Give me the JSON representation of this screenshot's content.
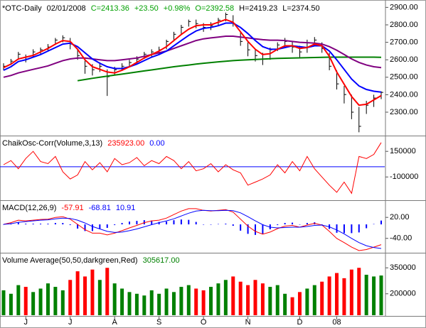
{
  "chart_data": [
    {
      "type": "ohlc",
      "header": [
        {
          "text": "*OTC-Daily",
          "color": "#000000"
        },
        {
          "text": "02/01/2008",
          "color": "#000000"
        },
        {
          "text": "C=2413.36",
          "color": "#00a000"
        },
        {
          "text": "+23.50",
          "color": "#00a000"
        },
        {
          "text": "+0.98%",
          "color": "#00a000"
        },
        {
          "text": "O=2392.58",
          "color": "#00a000"
        },
        {
          "text": "H=2419.23",
          "color": "#000000"
        },
        {
          "text": "L=2374.50",
          "color": "#000000"
        }
      ],
      "ylim": [
        2170,
        2930
      ],
      "yticks": [
        {
          "value": 2300,
          "label": "2300.00"
        },
        {
          "value": 2400,
          "label": "2400.00"
        },
        {
          "value": 2500,
          "label": "2500.00"
        },
        {
          "value": 2600,
          "label": "2600.00"
        },
        {
          "value": 2700,
          "label": "2700.00"
        },
        {
          "value": 2800,
          "label": "2800.00"
        },
        {
          "value": 2900,
          "label": "2900.00"
        }
      ],
      "bars": {
        "color": "#000000",
        "high": [
          2580,
          2605,
          2645,
          2630,
          2660,
          2670,
          2690,
          2725,
          2740,
          2725,
          2660,
          2600,
          2575,
          2585,
          2545,
          2560,
          2580,
          2600,
          2620,
          2645,
          2660,
          2675,
          2715,
          2760,
          2800,
          2830,
          2830,
          2810,
          2815,
          2840,
          2870,
          2855,
          2760,
          2700,
          2660,
          2640,
          2670,
          2700,
          2725,
          2705,
          2680,
          2715,
          2730,
          2700,
          2640,
          2540,
          2450,
          2400,
          2330,
          2365,
          2400,
          2419.23
        ],
        "low": [
          2540,
          2570,
          2600,
          2585,
          2615,
          2630,
          2650,
          2685,
          2700,
          2660,
          2600,
          2520,
          2510,
          2530,
          2393,
          2510,
          2540,
          2560,
          2580,
          2605,
          2615,
          2630,
          2660,
          2705,
          2745,
          2790,
          2780,
          2760,
          2770,
          2795,
          2820,
          2790,
          2680,
          2620,
          2590,
          2570,
          2600,
          2650,
          2670,
          2640,
          2610,
          2640,
          2680,
          2640,
          2540,
          2430,
          2350,
          2260,
          2185,
          2290,
          2330,
          2374.5
        ],
        "close": [
          2563,
          2592,
          2632,
          2604,
          2645,
          2657,
          2673,
          2713,
          2726,
          2697,
          2624,
          2563,
          2543,
          2563,
          2503,
          2543,
          2563,
          2584,
          2604,
          2632,
          2645,
          2657,
          2705,
          2746,
          2786,
          2819,
          2807,
          2786,
          2795,
          2827,
          2859,
          2807,
          2705,
          2657,
          2624,
          2604,
          2657,
          2685,
          2705,
          2673,
          2645,
          2697,
          2713,
          2665,
          2563,
          2462,
          2401,
          2300,
          2219,
          2340,
          2381,
          2413.36
        ]
      },
      "lines": [
        {
          "color": "#008000",
          "values": [
            null,
            null,
            null,
            null,
            null,
            null,
            null,
            null,
            null,
            null,
            2480,
            2487,
            2494,
            2500,
            2506,
            2512,
            2518,
            2524,
            2530,
            2536,
            2542,
            2548,
            2554,
            2560,
            2565,
            2570,
            2575,
            2580,
            2584,
            2588,
            2592,
            2595,
            2598,
            2600,
            2602,
            2604,
            2606,
            2608,
            2609,
            2610,
            2611,
            2612,
            2613,
            2614,
            2615,
            2615,
            2615,
            2615,
            2615,
            2615,
            2615,
            2614
          ]
        },
        {
          "color": "#800080",
          "values": [
            2500,
            2510,
            2525,
            2535,
            2545,
            2555,
            2565,
            2580,
            2595,
            2605,
            2610,
            2610,
            2605,
            2600,
            2595,
            2595,
            2600,
            2605,
            2610,
            2620,
            2630,
            2640,
            2650,
            2665,
            2680,
            2695,
            2710,
            2720,
            2725,
            2730,
            2735,
            2735,
            2730,
            2725,
            2720,
            2715,
            2712,
            2712,
            2710,
            2705,
            2700,
            2698,
            2695,
            2690,
            2675,
            2655,
            2630,
            2605,
            2585,
            2570,
            2560,
            2555
          ]
        },
        {
          "color": "#0000ff",
          "values": [
            2540,
            2560,
            2590,
            2600,
            2615,
            2630,
            2650,
            2670,
            2690,
            2695,
            2675,
            2640,
            2605,
            2580,
            2560,
            2550,
            2550,
            2560,
            2575,
            2595,
            2615,
            2630,
            2650,
            2680,
            2710,
            2740,
            2765,
            2780,
            2785,
            2795,
            2810,
            2810,
            2785,
            2750,
            2710,
            2675,
            2660,
            2660,
            2670,
            2680,
            2675,
            2670,
            2680,
            2680,
            2650,
            2600,
            2545,
            2490,
            2450,
            2430,
            2420,
            2415
          ]
        },
        {
          "color": "#ff0000",
          "values": [
            2555,
            2575,
            2605,
            2615,
            2625,
            2645,
            2665,
            2690,
            2710,
            2705,
            2660,
            2600,
            2560,
            2545,
            2530,
            2525,
            2540,
            2560,
            2585,
            2610,
            2630,
            2650,
            2675,
            2710,
            2745,
            2775,
            2795,
            2800,
            2800,
            2815,
            2830,
            2815,
            2760,
            2705,
            2660,
            2630,
            2635,
            2660,
            2680,
            2680,
            2665,
            2670,
            2690,
            2680,
            2620,
            2530,
            2460,
            2390,
            2340,
            2345,
            2370,
            2395
          ]
        }
      ]
    },
    {
      "type": "oscillator",
      "header": [
        {
          "text": "ChaikOsc-Corr(Volume,3,13)",
          "color": "#000000"
        },
        {
          "text": "235923.00",
          "color": "#ff0000"
        },
        {
          "text": "0.00",
          "color": "#0000ff"
        }
      ],
      "ylim": [
        -320000,
        290000
      ],
      "yticks": [
        -100000,
        150000
      ],
      "zero_color": "#0000ff",
      "series": [
        {
          "color": "#ff0000",
          "values": [
            20000,
            60000,
            -20000,
            80000,
            150000,
            50000,
            30000,
            100000,
            -50000,
            -120000,
            -80000,
            50000,
            -30000,
            40000,
            -50000,
            80000,
            20000,
            40000,
            90000,
            10000,
            60000,
            30000,
            100000,
            60000,
            -20000,
            50000,
            -40000,
            -20000,
            30000,
            -50000,
            20000,
            -30000,
            -60000,
            -180000,
            -150000,
            -120000,
            -80000,
            20000,
            -60000,
            50000,
            -40000,
            100000,
            -20000,
            -100000,
            -180000,
            -250000,
            -150000,
            -260000,
            100000,
            80000,
            120000,
            235923
          ]
        }
      ]
    },
    {
      "type": "macd",
      "header": [
        {
          "text": "MACD(12,26,9)",
          "color": "#000000"
        },
        {
          "text": "-57.91",
          "color": "#ff0000"
        },
        {
          "text": "-68.81",
          "color": "#0000ff"
        },
        {
          "text": "10.91",
          "color": "#0000ff"
        }
      ],
      "ylim": [
        -79,
        65
      ],
      "yticks": [
        {
          "value": -40,
          "label": "-40.00"
        },
        {
          "value": 20,
          "label": "20.00"
        }
      ],
      "histogram": {
        "color": "#0000ff",
        "values": [
          0,
          3,
          6,
          2,
          2,
          2,
          2,
          4,
          4,
          -2,
          -12,
          -19,
          -19,
          -12,
          -10,
          -2,
          4,
          8,
          10,
          12,
          11,
          7,
          8,
          12,
          14,
          13,
          7,
          0,
          -1,
          1,
          2,
          -4,
          -18,
          -27,
          -30,
          -27,
          -14,
          -2,
          4,
          5,
          0,
          4,
          6,
          0,
          -13,
          -24,
          -25,
          -25,
          -23,
          -11,
          1,
          10.91
        ]
      },
      "series": [
        {
          "color": "#ff0000",
          "values": [
            0,
            5,
            12,
            10,
            12,
            14,
            15,
            20,
            22,
            15,
            0,
            -15,
            -25,
            -25,
            -30,
            -25,
            -18,
            -10,
            -3,
            5,
            10,
            12,
            18,
            28,
            38,
            45,
            45,
            40,
            38,
            40,
            42,
            35,
            15,
            -5,
            -20,
            -28,
            -22,
            -12,
            -5,
            -3,
            -8,
            -2,
            3,
            -2,
            -20,
            -40,
            -52,
            -65,
            -75,
            -72,
            -65,
            -57.91
          ]
        },
        {
          "color": "#0000ff",
          "values": [
            0,
            2,
            6,
            8,
            10,
            12,
            13,
            16,
            18,
            17,
            12,
            4,
            -6,
            -13,
            -20,
            -23,
            -22,
            -18,
            -13,
            -7,
            -1,
            5,
            10,
            16,
            24,
            32,
            38,
            40,
            39,
            39,
            40,
            39,
            33,
            22,
            10,
            -1,
            -8,
            -10,
            -9,
            -8,
            -8,
            -6,
            -3,
            -2,
            -7,
            -16,
            -27,
            -40,
            -52,
            -61,
            -66,
            -68.81
          ]
        }
      ]
    },
    {
      "type": "volume",
      "header": [
        {
          "text": "Volume Average(50,50,darkgreen,Red)",
          "color": "#000000"
        },
        {
          "text": "305617.00",
          "color": "#008000"
        }
      ],
      "ylim": [
        76000,
        429000
      ],
      "yticks": [
        200000,
        350000
      ],
      "up_color": "#008000",
      "down_color": "#ff0000",
      "categories": [
        null,
        null,
        null,
        "J",
        null,
        null,
        null,
        null,
        null,
        "J",
        null,
        null,
        null,
        null,
        null,
        "A",
        null,
        null,
        null,
        null,
        null,
        "S",
        null,
        null,
        null,
        null,
        null,
        "O",
        null,
        null,
        null,
        null,
        null,
        "N",
        null,
        null,
        null,
        null,
        null,
        null,
        "D",
        null,
        null,
        null,
        null,
        "08",
        null,
        null,
        null,
        null,
        null,
        null
      ],
      "values": [
        220000,
        200000,
        250000,
        240000,
        210000,
        230000,
        260000,
        240000,
        220000,
        280000,
        330000,
        300000,
        340000,
        280000,
        350000,
        260000,
        230000,
        210000,
        200000,
        190000,
        220000,
        200000,
        230000,
        210000,
        240000,
        250000,
        230000,
        220000,
        240000,
        260000,
        280000,
        300000,
        270000,
        250000,
        280000,
        260000,
        240000,
        250000,
        200000,
        180000,
        210000,
        230000,
        250000,
        270000,
        300000,
        320000,
        290000,
        340000,
        350000,
        310000,
        300000,
        305617
      ]
    }
  ]
}
